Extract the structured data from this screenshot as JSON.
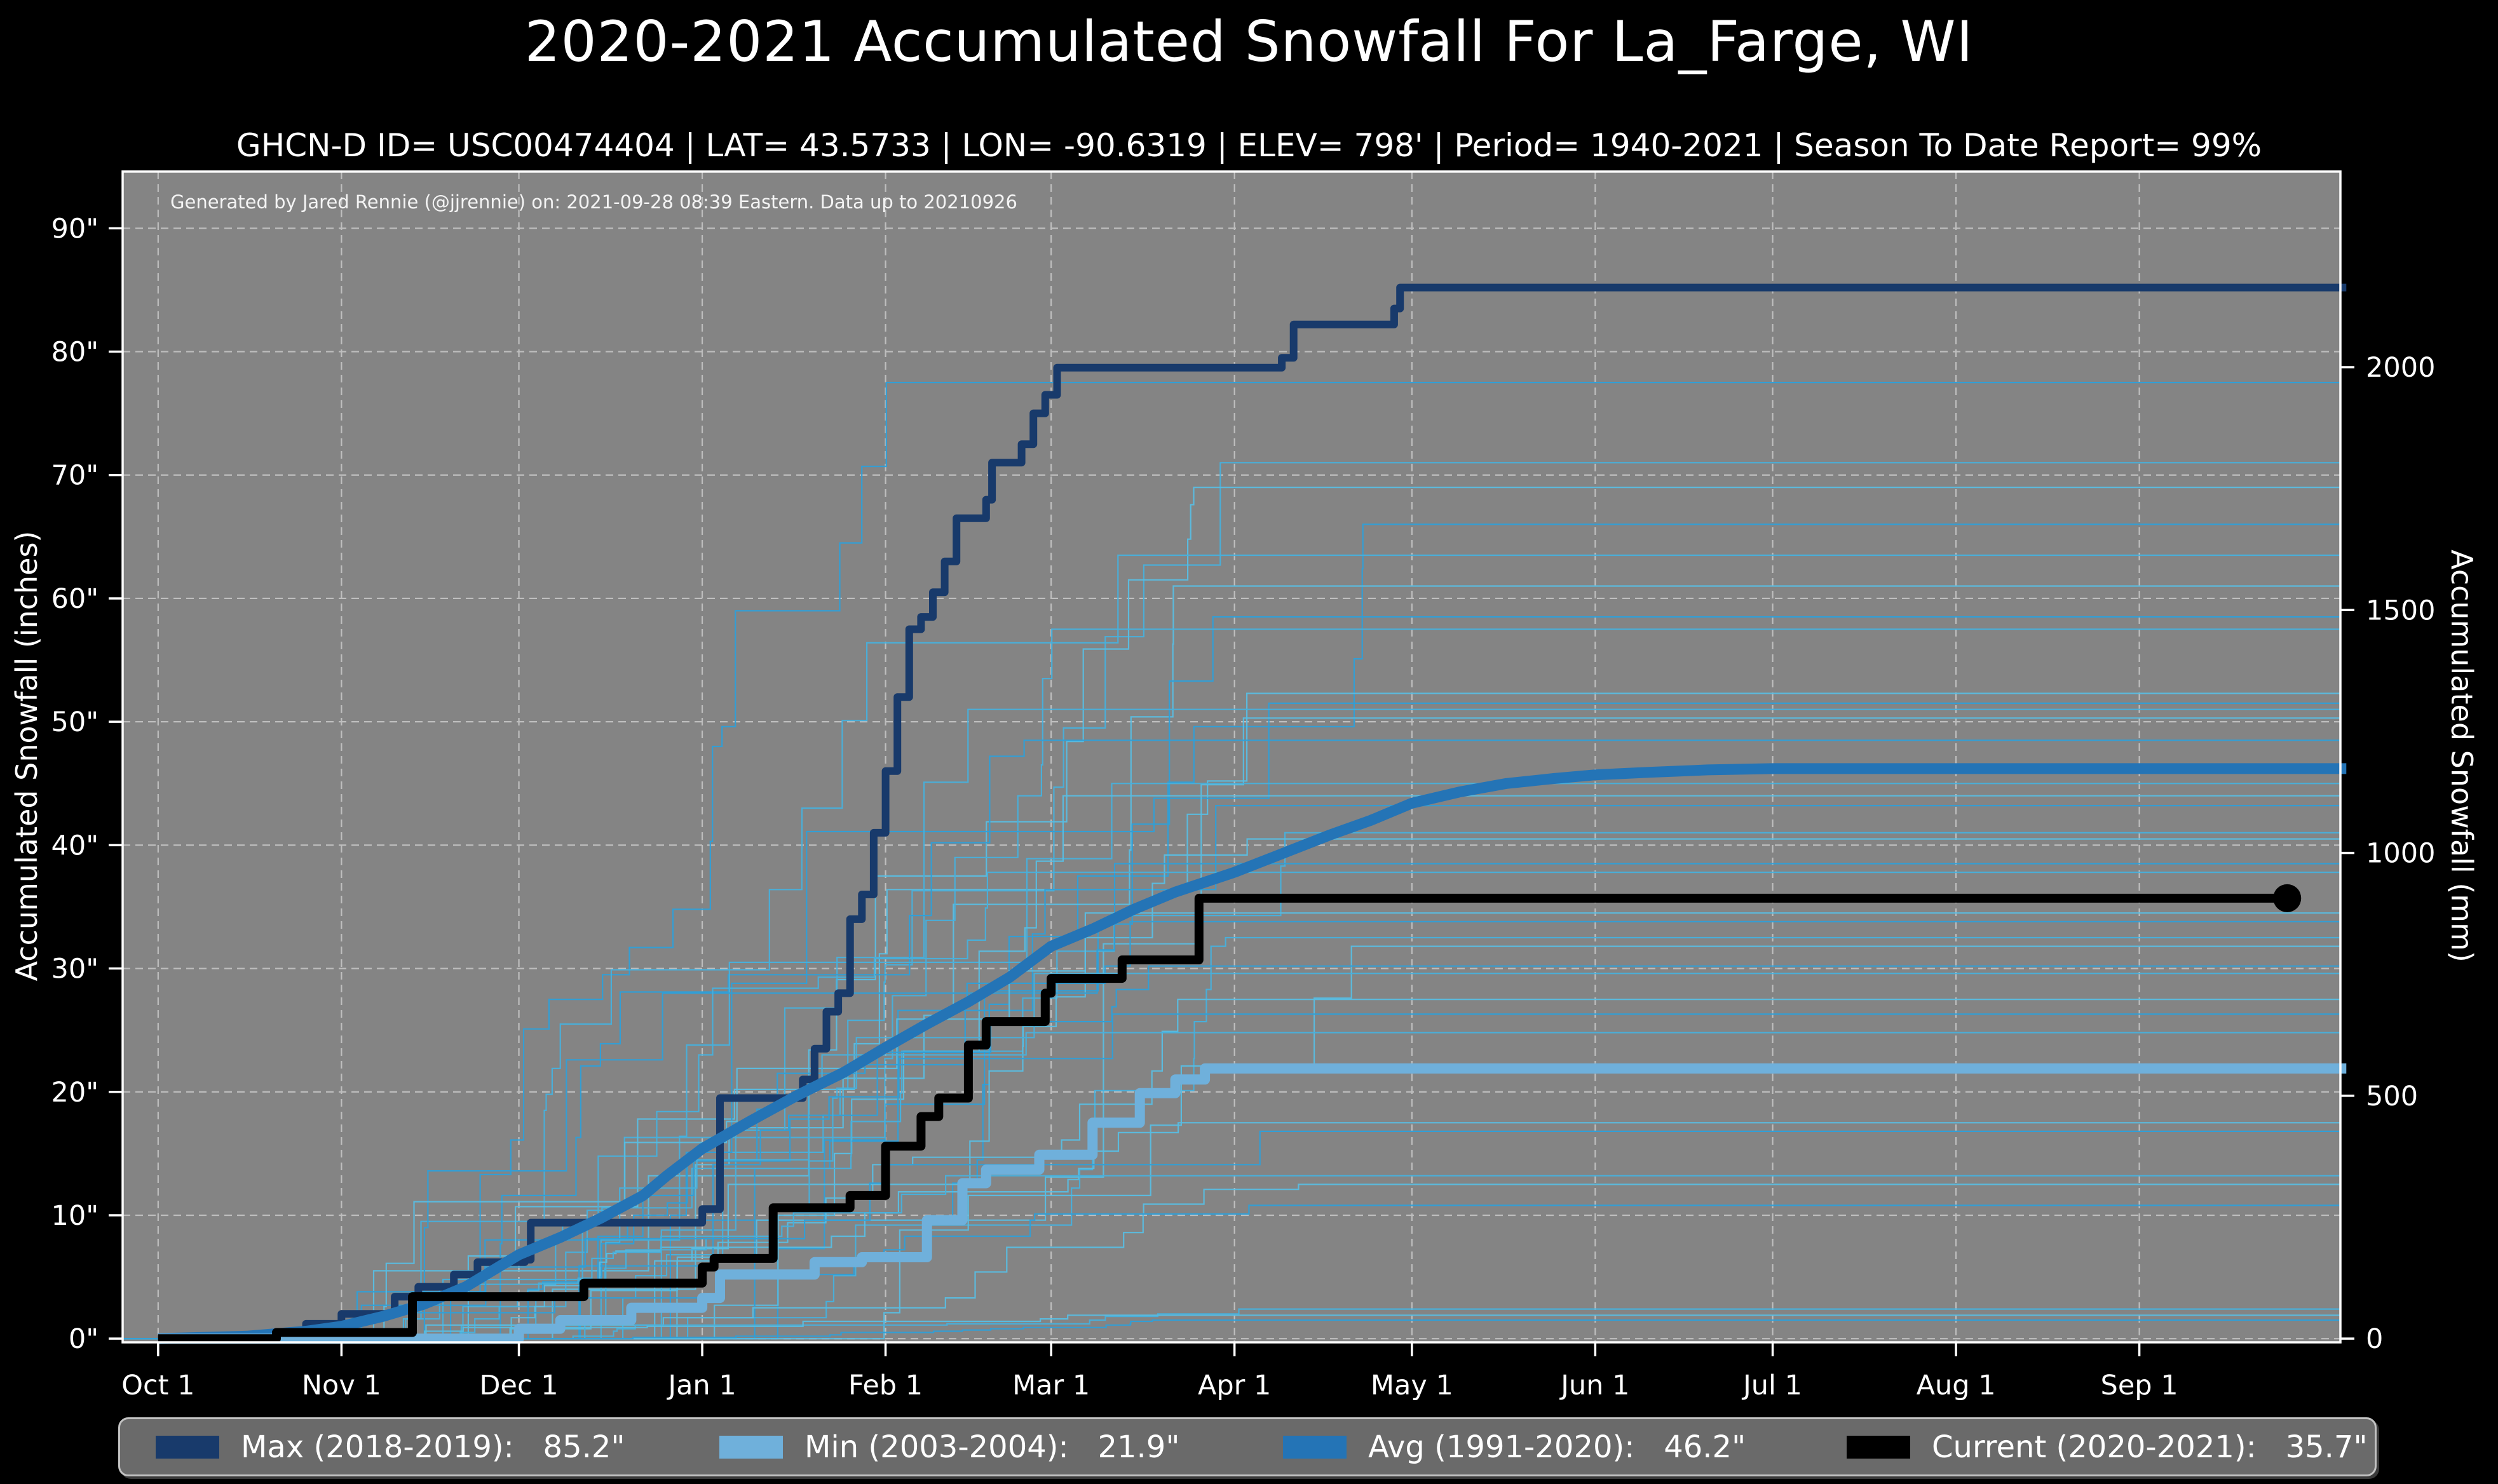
{
  "header": {
    "title": "2020-2021 Accumulated Snowfall For La_Farge, WI",
    "subtitle": "GHCN-D ID= USC00474404 | LAT= 43.5733 | LON= -90.6319 | ELEV= 798' | Period= 1940-2021 | Season To Date Report= 99%"
  },
  "annotation": "Generated by Jared Rennie (@jjrennie) on: 2021-09-28 08:39 Eastern. Data up to 20210926",
  "axes": {
    "left_label": "Accumulated Snowfall (inches)",
    "right_label": "Accumulated Snowfall (mm)"
  },
  "colors": {
    "figure_bg": "#000000",
    "plot_bg": "#848484",
    "grid": "#c9c9c9",
    "spine": "#ffffff",
    "text": "#ffffff",
    "legend_bg": "#6a6a6a",
    "legend_border": "#c2c2c2",
    "background_lines": [
      "#2e9fd8",
      "#47b0dc",
      "#59bde2"
    ]
  },
  "chart_data": {
    "type": "line",
    "title": "2020-2021 Accumulated Snowfall For La_Farge, WI",
    "x_axis": {
      "tick_labels": [
        "Oct 1",
        "Nov 1",
        "Dec 1",
        "Jan 1",
        "Feb 1",
        "Mar 1",
        "Apr 1",
        "May 1",
        "Jun 1",
        "Jul 1",
        "Aug 1",
        "Sep 1"
      ],
      "tick_days": [
        0,
        31,
        61,
        92,
        123,
        151,
        182,
        212,
        243,
        273,
        304,
        335
      ],
      "domain_days": [
        -6,
        369
      ],
      "grid": true
    },
    "y_left": {
      "label": "Accumulated Snowfall (inches)",
      "tick_labels": [
        "0\"",
        "10\"",
        "20\"",
        "30\"",
        "40\"",
        "50\"",
        "60\"",
        "70\"",
        "80\"",
        "90\""
      ],
      "tick_values": [
        0,
        10,
        20,
        30,
        40,
        50,
        60,
        70,
        80,
        90
      ],
      "lim": [
        -0.3,
        94.6
      ],
      "grid": true
    },
    "y_right": {
      "label": "Accumulated Snowfall (mm)",
      "tick_labels": [
        "0",
        "500",
        "1000",
        "1500",
        "2000"
      ],
      "tick_values_mm": [
        0,
        500,
        1000,
        1500,
        2000
      ],
      "mm_per_inch": 25.4
    },
    "series": [
      {
        "name": "Max (2018-2019)",
        "season": "2018-2019",
        "total_inches": 85.2,
        "color": "#183a6b",
        "style": "step",
        "width": 12,
        "points": [
          [
            0,
            0
          ],
          [
            24,
            0
          ],
          [
            25,
            1.2
          ],
          [
            31,
            2.0
          ],
          [
            39,
            2.0
          ],
          [
            40,
            3.4
          ],
          [
            44,
            4.2
          ],
          [
            49,
            4.2
          ],
          [
            50,
            5.2
          ],
          [
            54,
            6.2
          ],
          [
            62,
            6.4
          ],
          [
            63,
            9.4
          ],
          [
            91,
            9.4
          ],
          [
            92,
            10.5
          ],
          [
            94,
            10.5
          ],
          [
            95,
            19.5
          ],
          [
            108,
            19.5
          ],
          [
            109,
            21.0
          ],
          [
            111,
            23.5
          ],
          [
            113,
            26.5
          ],
          [
            115,
            28.0
          ],
          [
            117,
            34.0
          ],
          [
            119,
            36.0
          ],
          [
            121,
            41.0
          ],
          [
            123,
            46.0
          ],
          [
            125,
            52.0
          ],
          [
            127,
            57.5
          ],
          [
            129,
            58.5
          ],
          [
            131,
            60.5
          ],
          [
            133,
            63.0
          ],
          [
            135,
            66.5
          ],
          [
            139,
            66.5
          ],
          [
            140,
            68.0
          ],
          [
            141,
            71.0
          ],
          [
            145,
            71.0
          ],
          [
            146,
            72.5
          ],
          [
            148,
            75.0
          ],
          [
            150,
            76.5
          ],
          [
            152,
            78.7
          ],
          [
            189,
            78.7
          ],
          [
            190,
            79.5
          ],
          [
            192,
            82.2
          ],
          [
            208,
            82.2
          ],
          [
            209,
            83.5
          ],
          [
            210,
            85.2
          ],
          [
            370,
            85.2
          ]
        ]
      },
      {
        "name": "Avg (1991-2020)",
        "season": "1991-2020",
        "total_inches": 46.2,
        "color": "#2474b6",
        "style": "linear",
        "width": 17,
        "points": [
          [
            0,
            0
          ],
          [
            15,
            0.2
          ],
          [
            25,
            0.6
          ],
          [
            31,
            1.0
          ],
          [
            38,
            1.8
          ],
          [
            45,
            2.8
          ],
          [
            52,
            4.2
          ],
          [
            61,
            6.8
          ],
          [
            68,
            8.2
          ],
          [
            75,
            9.8
          ],
          [
            82,
            11.6
          ],
          [
            86,
            13.2
          ],
          [
            92,
            15.4
          ],
          [
            100,
            17.6
          ],
          [
            108,
            19.7
          ],
          [
            116,
            21.6
          ],
          [
            123,
            23.6
          ],
          [
            130,
            25.5
          ],
          [
            137,
            27.3
          ],
          [
            144,
            29.3
          ],
          [
            151,
            31.8
          ],
          [
            158,
            33.2
          ],
          [
            165,
            34.8
          ],
          [
            172,
            36.2
          ],
          [
            182,
            37.8
          ],
          [
            190,
            39.3
          ],
          [
            198,
            40.8
          ],
          [
            205,
            42.0
          ],
          [
            212,
            43.4
          ],
          [
            220,
            44.3
          ],
          [
            228,
            45.0
          ],
          [
            236,
            45.4
          ],
          [
            243,
            45.7
          ],
          [
            252,
            45.9
          ],
          [
            262,
            46.1
          ],
          [
            273,
            46.2
          ],
          [
            370,
            46.2
          ]
        ]
      },
      {
        "name": "Min (2003-2004)",
        "season": "2003-2004",
        "total_inches": 21.9,
        "color": "#6fb0db",
        "style": "step",
        "width": 16,
        "points": [
          [
            0,
            0
          ],
          [
            58,
            0
          ],
          [
            61,
            0.8
          ],
          [
            68,
            1.5
          ],
          [
            80,
            2.5
          ],
          [
            92,
            3.3
          ],
          [
            95,
            5.2
          ],
          [
            111,
            6.2
          ],
          [
            119,
            6.6
          ],
          [
            129,
            6.6
          ],
          [
            130,
            9.6
          ],
          [
            136,
            12.6
          ],
          [
            140,
            13.7
          ],
          [
            149,
            14.9
          ],
          [
            158,
            17.5
          ],
          [
            166,
            19.9
          ],
          [
            172,
            21.0
          ],
          [
            177,
            21.9
          ],
          [
            370,
            21.9
          ]
        ]
      },
      {
        "name": "Current (2020-2021)",
        "season": "2020-2021",
        "total_inches": 35.7,
        "color": "#000000",
        "style": "step",
        "width": 14,
        "end_dot": {
          "day": 360,
          "value": 35.7,
          "radius": 22
        },
        "points": [
          [
            0,
            0
          ],
          [
            19,
            0
          ],
          [
            20,
            0.5
          ],
          [
            42,
            0.5
          ],
          [
            43,
            3.4
          ],
          [
            71,
            3.4
          ],
          [
            72,
            4.5
          ],
          [
            91,
            4.5
          ],
          [
            92,
            5.8
          ],
          [
            94,
            6.5
          ],
          [
            103,
            6.5
          ],
          [
            104,
            10.6
          ],
          [
            116,
            10.6
          ],
          [
            117,
            11.6
          ],
          [
            122,
            11.6
          ],
          [
            123,
            15.6
          ],
          [
            128,
            15.6
          ],
          [
            129,
            18.0
          ],
          [
            132,
            19.5
          ],
          [
            136,
            19.5
          ],
          [
            137,
            23.8
          ],
          [
            140,
            25.7
          ],
          [
            149,
            25.7
          ],
          [
            150,
            28.0
          ],
          [
            151,
            29.2
          ],
          [
            162,
            29.2
          ],
          [
            163,
            30.7
          ],
          [
            175,
            30.7
          ],
          [
            176,
            35.7
          ],
          [
            360,
            35.7
          ]
        ]
      }
    ],
    "background_series": {
      "description": "Thin lines: every other season 1940-2021; season-end totals (inches) read from right edge",
      "width": 2.2,
      "end_values_inches": [
        77.5,
        71,
        69,
        66,
        63.5,
        61,
        58.5,
        57.5,
        52.3,
        51.5,
        51,
        50.3,
        48.5,
        45,
        44,
        43.2,
        41,
        40.5,
        38.5,
        37.8,
        34.5,
        33.8,
        32.5,
        31.8,
        30.2,
        29.6,
        27.5,
        26.3,
        24.8,
        17.5,
        16.8,
        13.2,
        12.5,
        10.8,
        2.4,
        1.9,
        1.5
      ]
    },
    "legend_position": "bottom"
  },
  "legend": {
    "items": [
      {
        "label": "Max (2018-2019):   85.2\"",
        "color": "#183a6b"
      },
      {
        "label": "Min (2003-2004):   21.9\"",
        "color": "#6fb0db"
      },
      {
        "label": "Avg (1991-2020):   46.2\"",
        "color": "#2474b6"
      },
      {
        "label": "Current (2020-2021):   35.7\"",
        "color": "#000000"
      }
    ]
  }
}
